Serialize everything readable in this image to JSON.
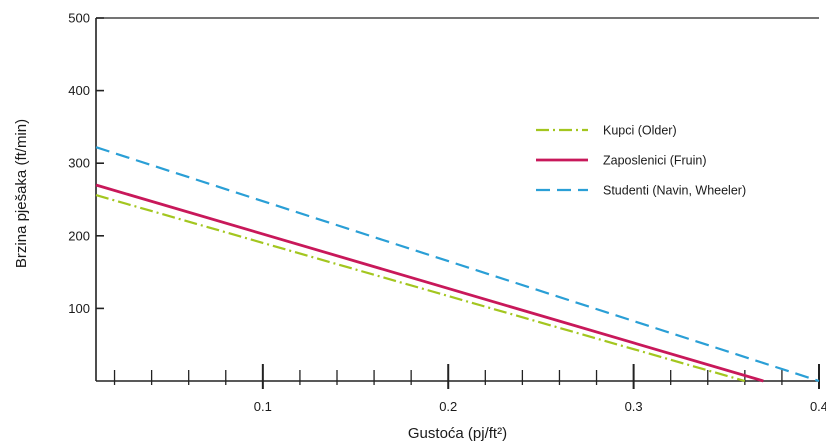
{
  "chart_data": {
    "type": "line",
    "xlabel": "Gustoća (pj/ft²)",
    "ylabel": "Brzina pješaka (ft/min)",
    "xlim": [
      0.01,
      0.4
    ],
    "ylim": [
      0,
      500
    ],
    "x_ticks": [
      0.1,
      0.2,
      0.3,
      0.4
    ],
    "x_tick_labels": [
      "0.1",
      "0.2",
      "0.3",
      "0.4"
    ],
    "x_minor_ticks": [
      0.02,
      0.04,
      0.06,
      0.08,
      0.12,
      0.14,
      0.16,
      0.18,
      0.22,
      0.24,
      0.26,
      0.28,
      0.32,
      0.34,
      0.36,
      0.38
    ],
    "y_ticks": [
      100,
      200,
      300,
      400,
      500
    ],
    "y_tick_labels": [
      "100",
      "200",
      "300",
      "400",
      "500"
    ],
    "grid": false,
    "legend_position": "right",
    "series": [
      {
        "name": "Kupci (Older)",
        "style": "dash-dot",
        "color": "#a3c61f",
        "x": [
          0.01,
          0.36
        ],
        "y": [
          256,
          0
        ]
      },
      {
        "name": "Zaposlenici (Fruin)",
        "style": "solid",
        "color": "#c8185a",
        "x": [
          0.01,
          0.37
        ],
        "y": [
          270,
          0
        ]
      },
      {
        "name": "Studenti (Navin, Wheeler)",
        "style": "dashed",
        "color": "#2a9fd6",
        "x": [
          0.01,
          0.4
        ],
        "y": [
          322,
          0
        ]
      }
    ]
  }
}
